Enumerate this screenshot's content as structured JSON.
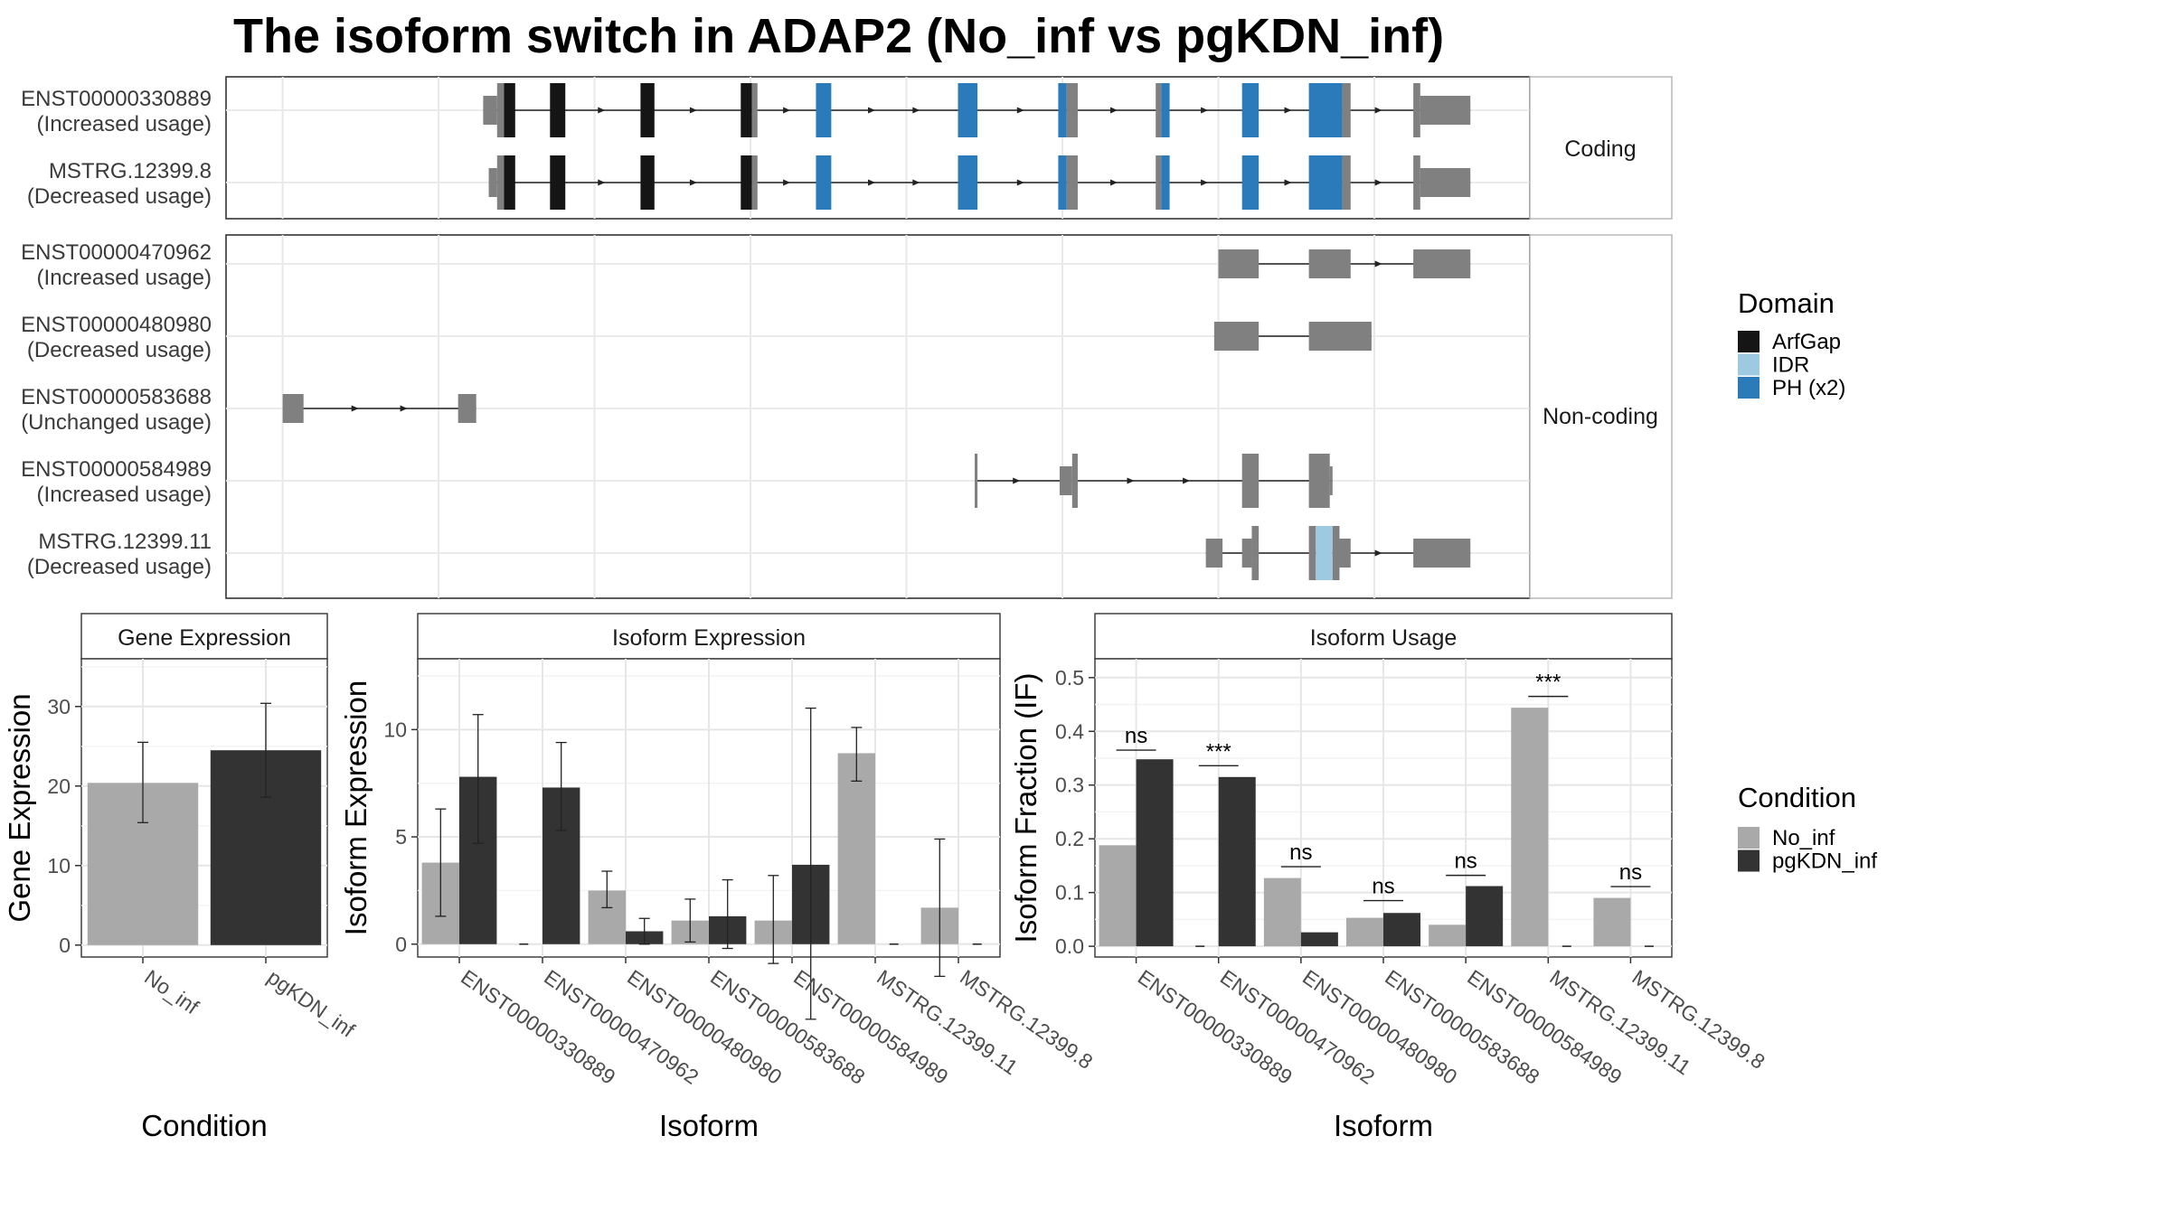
{
  "title": "The isoform switch in ADAP2 (No_inf vs pgKDN_inf)",
  "colors": {
    "no_inf": "#a9a9a9",
    "pgkdn_inf": "#333333",
    "arfgap": "#151515",
    "idr": "#9ecae1",
    "ph": "#2b7bba",
    "exon": "#808080"
  },
  "structure": {
    "groups": [
      {
        "label": "Coding",
        "tracks": [
          {
            "name": "ENST00000330889",
            "usage": "(Increased usage)",
            "exons": [
              [
                347,
                357,
                "u"
              ],
              [
                357,
                362,
                "c"
              ],
              [
                362,
                370,
                "arfgap"
              ],
              [
                395,
                406,
                "arfgap"
              ],
              [
                460,
                470,
                "arfgap"
              ],
              [
                532,
                540,
                "arfgap"
              ],
              [
                540,
                544,
                "c"
              ],
              [
                586,
                597,
                "ph"
              ],
              [
                688,
                702,
                "ph"
              ],
              [
                760,
                766,
                "ph"
              ],
              [
                766,
                774,
                "c"
              ],
              [
                830,
                834,
                "c"
              ],
              [
                834,
                840,
                "ph"
              ],
              [
                892,
                904,
                "ph"
              ],
              [
                940,
                964,
                "ph"
              ],
              [
                964,
                970,
                "c"
              ],
              [
                1015,
                1020,
                "c"
              ],
              [
                1020,
                1056,
                "u"
              ]
            ],
            "arrows": [
              432,
              498,
              565,
              626,
              658,
              733,
              800,
              865,
              925,
              990
            ]
          },
          {
            "name": "MSTRG.12399.8",
            "usage": "(Decreased usage)",
            "exons": [
              [
                351,
                357,
                "u"
              ],
              [
                357,
                362,
                "c"
              ],
              [
                362,
                370,
                "arfgap"
              ],
              [
                395,
                406,
                "arfgap"
              ],
              [
                460,
                470,
                "arfgap"
              ],
              [
                532,
                540,
                "arfgap"
              ],
              [
                540,
                544,
                "c"
              ],
              [
                586,
                597,
                "ph"
              ],
              [
                688,
                702,
                "ph"
              ],
              [
                760,
                766,
                "ph"
              ],
              [
                766,
                774,
                "c"
              ],
              [
                830,
                834,
                "c"
              ],
              [
                834,
                840,
                "ph"
              ],
              [
                892,
                904,
                "ph"
              ],
              [
                940,
                964,
                "ph"
              ],
              [
                964,
                970,
                "c"
              ],
              [
                1015,
                1020,
                "c"
              ],
              [
                1020,
                1056,
                "u"
              ]
            ],
            "arrows": [
              432,
              498,
              565,
              626,
              658,
              733,
              800,
              865,
              925,
              990
            ]
          }
        ]
      },
      {
        "label": "Non-coding",
        "tracks": [
          {
            "name": "ENST00000470962",
            "usage": "(Increased usage)",
            "exons": [
              [
                875,
                904,
                "u"
              ],
              [
                940,
                970,
                "u"
              ],
              [
                1015,
                1056,
                "u"
              ]
            ],
            "arrows": [
              990
            ]
          },
          {
            "name": "ENST00000480980",
            "usage": "(Decreased usage)",
            "exons": [
              [
                872,
                904,
                "u"
              ],
              [
                940,
                985,
                "u"
              ]
            ],
            "arrows": []
          },
          {
            "name": "ENST00000583688",
            "usage": "(Unchanged usage)",
            "exons": [
              [
                203,
                218,
                "u"
              ],
              [
                329,
                342,
                "u"
              ]
            ],
            "arrows": [
              255,
              290
            ]
          },
          {
            "name": "ENST00000584989",
            "usage": "(Increased usage)",
            "exons": [
              [
                700,
                702,
                "c"
              ],
              [
                761,
                770,
                "u"
              ],
              [
                770,
                774,
                "c"
              ],
              [
                892,
                904,
                "c"
              ],
              [
                940,
                955,
                "c"
              ],
              [
                955,
                957,
                "u"
              ]
            ],
            "arrows": [
              730,
              812,
              852
            ]
          },
          {
            "name": "MSTRG.12399.11",
            "usage": "(Decreased usage)",
            "exons": [
              [
                866,
                878,
                "u"
              ],
              [
                892,
                899,
                "u"
              ],
              [
                899,
                904,
                "c"
              ],
              [
                940,
                945,
                "c"
              ],
              [
                945,
                957,
                "idr"
              ],
              [
                957,
                962,
                "c"
              ],
              [
                962,
                970,
                "u"
              ],
              [
                1015,
                1056,
                "u"
              ]
            ],
            "arrows": [
              990
            ]
          }
        ]
      }
    ]
  },
  "chart_data": [
    {
      "type": "bar",
      "title": "Gene Expression",
      "xlabel": "Condition",
      "ylabel": "Gene Expression",
      "ylim": [
        -1.5,
        36
      ],
      "yticks": [
        0,
        10,
        20,
        30
      ],
      "categories": [
        "No_inf",
        "pgKDN_inf"
      ],
      "values": [
        20.4,
        24.5
      ],
      "err_low": [
        15.4,
        18.6
      ],
      "err_high": [
        25.5,
        30.4
      ]
    },
    {
      "type": "bar",
      "title": "Isoform Expression",
      "xlabel": "Isoform",
      "ylabel": "Isoform Expression",
      "ylim": [
        -0.6,
        13.3
      ],
      "yticks": [
        0,
        5,
        10
      ],
      "categories": [
        "ENST00000330889",
        "ENST00000470962",
        "ENST00000480980",
        "ENST00000583688",
        "ENST00000584989",
        "MSTRG.12399.11",
        "MSTRG.12399.8"
      ],
      "series": [
        {
          "name": "No_inf",
          "values": [
            3.8,
            0.0,
            2.5,
            1.1,
            1.1,
            8.9,
            1.7
          ],
          "err_low": [
            1.3,
            0.0,
            1.7,
            0.1,
            -0.9,
            7.6,
            -1.5
          ],
          "err_high": [
            6.3,
            0.0,
            3.4,
            2.1,
            3.2,
            10.1,
            4.9
          ]
        },
        {
          "name": "pgKDN_inf",
          "values": [
            7.8,
            7.3,
            0.6,
            1.3,
            3.7,
            0.0,
            0.0
          ],
          "err_low": [
            4.7,
            5.3,
            0.0,
            -0.2,
            -3.5,
            0.0,
            0.0
          ],
          "err_high": [
            10.7,
            9.4,
            1.2,
            3.0,
            11.0,
            0.0,
            0.0
          ]
        }
      ]
    },
    {
      "type": "bar",
      "title": "Isoform Usage",
      "xlabel": "Isoform",
      "ylabel": "Isoform Fraction (IF)",
      "ylim": [
        -0.02,
        0.535
      ],
      "yticks": [
        0.0,
        0.1,
        0.2,
        0.3,
        0.4,
        0.5
      ],
      "ytick_labels": [
        "0.0",
        "0.1",
        "0.2",
        "0.3",
        "0.4",
        "0.5"
      ],
      "categories": [
        "ENST00000330889",
        "ENST00000470962",
        "ENST00000480980",
        "ENST00000583688",
        "ENST00000584989",
        "MSTRG.12399.11",
        "MSTRG.12399.8"
      ],
      "series": [
        {
          "name": "No_inf",
          "values": [
            0.188,
            0.0,
            0.127,
            0.053,
            0.04,
            0.444,
            0.09
          ]
        },
        {
          "name": "pgKDN_inf",
          "values": [
            0.348,
            0.315,
            0.026,
            0.062,
            0.112,
            0.0,
            0.0
          ]
        }
      ],
      "significance": [
        "ns",
        "***",
        "ns",
        "ns",
        "ns",
        "***",
        "ns"
      ],
      "sig_y": [
        0.365,
        0.336,
        0.148,
        0.085,
        0.132,
        0.465,
        0.111
      ]
    }
  ],
  "legends": {
    "domain": {
      "title": "Domain",
      "items": [
        {
          "label": "ArfGap",
          "color": "#151515"
        },
        {
          "label": "IDR",
          "color": "#9ecae1"
        },
        {
          "label": "PH (x2)",
          "color": "#2b7bba"
        }
      ]
    },
    "condition": {
      "title": "Condition",
      "items": [
        {
          "label": "No_inf",
          "color": "#a9a9a9"
        },
        {
          "label": "pgKDN_inf",
          "color": "#333333"
        }
      ]
    }
  }
}
